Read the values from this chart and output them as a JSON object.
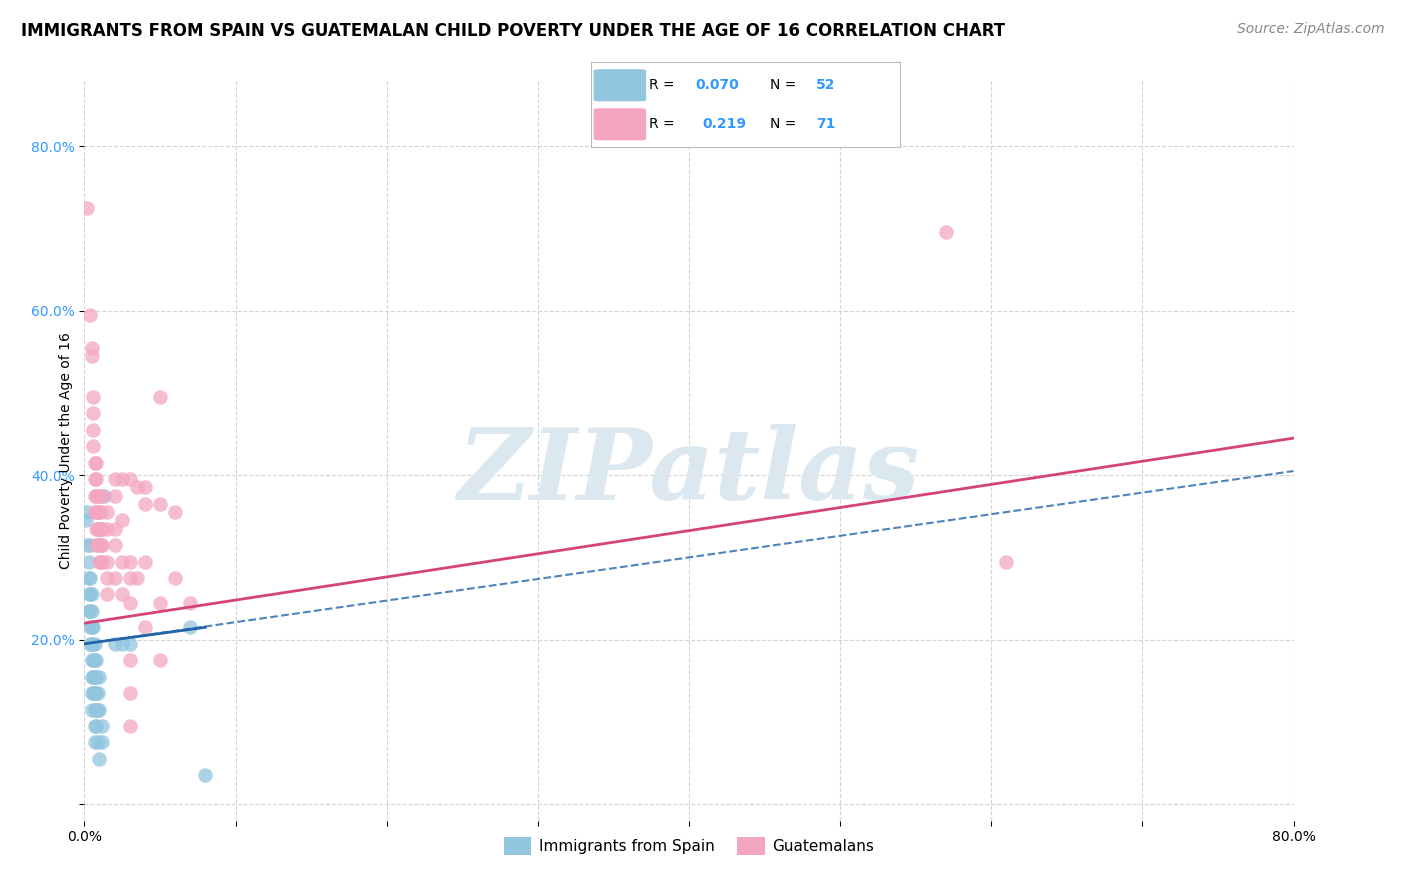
{
  "title": "IMMIGRANTS FROM SPAIN VS GUATEMALAN CHILD POVERTY UNDER THE AGE OF 16 CORRELATION CHART",
  "source": "Source: ZipAtlas.com",
  "ylabel": "Child Poverty Under the Age of 16",
  "xlim": [
    0,
    0.8
  ],
  "ylim": [
    -0.02,
    0.88
  ],
  "color_blue": "#92c5de",
  "color_pink": "#f4a6c0",
  "color_blue_line": "#2166ac",
  "color_pink_line": "#d6427a",
  "color_blue_tick": "#3399ff",
  "watermark_text": "ZIPatlas",
  "blue_points": [
    [
      0.001,
      0.345
    ],
    [
      0.002,
      0.355
    ],
    [
      0.002,
      0.315
    ],
    [
      0.003,
      0.295
    ],
    [
      0.003,
      0.275
    ],
    [
      0.003,
      0.255
    ],
    [
      0.003,
      0.235
    ],
    [
      0.004,
      0.315
    ],
    [
      0.004,
      0.275
    ],
    [
      0.004,
      0.255
    ],
    [
      0.004,
      0.235
    ],
    [
      0.004,
      0.215
    ],
    [
      0.004,
      0.195
    ],
    [
      0.005,
      0.255
    ],
    [
      0.005,
      0.235
    ],
    [
      0.005,
      0.215
    ],
    [
      0.005,
      0.195
    ],
    [
      0.005,
      0.175
    ],
    [
      0.005,
      0.155
    ],
    [
      0.005,
      0.135
    ],
    [
      0.005,
      0.115
    ],
    [
      0.006,
      0.215
    ],
    [
      0.006,
      0.195
    ],
    [
      0.006,
      0.175
    ],
    [
      0.006,
      0.155
    ],
    [
      0.006,
      0.135
    ],
    [
      0.007,
      0.195
    ],
    [
      0.007,
      0.175
    ],
    [
      0.007,
      0.155
    ],
    [
      0.007,
      0.135
    ],
    [
      0.007,
      0.115
    ],
    [
      0.007,
      0.095
    ],
    [
      0.007,
      0.075
    ],
    [
      0.008,
      0.175
    ],
    [
      0.008,
      0.155
    ],
    [
      0.008,
      0.135
    ],
    [
      0.008,
      0.115
    ],
    [
      0.008,
      0.095
    ],
    [
      0.009,
      0.135
    ],
    [
      0.009,
      0.115
    ],
    [
      0.009,
      0.075
    ],
    [
      0.01,
      0.155
    ],
    [
      0.01,
      0.115
    ],
    [
      0.01,
      0.055
    ],
    [
      0.012,
      0.095
    ],
    [
      0.012,
      0.075
    ],
    [
      0.013,
      0.375
    ],
    [
      0.02,
      0.195
    ],
    [
      0.025,
      0.195
    ],
    [
      0.03,
      0.195
    ],
    [
      0.07,
      0.215
    ],
    [
      0.08,
      0.035
    ]
  ],
  "pink_points": [
    [
      0.002,
      0.725
    ],
    [
      0.004,
      0.595
    ],
    [
      0.005,
      0.555
    ],
    [
      0.005,
      0.545
    ],
    [
      0.006,
      0.495
    ],
    [
      0.006,
      0.475
    ],
    [
      0.006,
      0.455
    ],
    [
      0.006,
      0.435
    ],
    [
      0.007,
      0.415
    ],
    [
      0.007,
      0.395
    ],
    [
      0.007,
      0.375
    ],
    [
      0.007,
      0.355
    ],
    [
      0.008,
      0.415
    ],
    [
      0.008,
      0.395
    ],
    [
      0.008,
      0.375
    ],
    [
      0.008,
      0.355
    ],
    [
      0.008,
      0.335
    ],
    [
      0.008,
      0.315
    ],
    [
      0.009,
      0.375
    ],
    [
      0.009,
      0.355
    ],
    [
      0.009,
      0.335
    ],
    [
      0.009,
      0.315
    ],
    [
      0.01,
      0.375
    ],
    [
      0.01,
      0.355
    ],
    [
      0.01,
      0.335
    ],
    [
      0.01,
      0.315
    ],
    [
      0.01,
      0.295
    ],
    [
      0.011,
      0.355
    ],
    [
      0.011,
      0.335
    ],
    [
      0.011,
      0.315
    ],
    [
      0.011,
      0.295
    ],
    [
      0.012,
      0.375
    ],
    [
      0.012,
      0.335
    ],
    [
      0.012,
      0.315
    ],
    [
      0.012,
      0.295
    ],
    [
      0.015,
      0.355
    ],
    [
      0.015,
      0.335
    ],
    [
      0.015,
      0.295
    ],
    [
      0.015,
      0.275
    ],
    [
      0.015,
      0.255
    ],
    [
      0.02,
      0.395
    ],
    [
      0.02,
      0.375
    ],
    [
      0.02,
      0.335
    ],
    [
      0.02,
      0.315
    ],
    [
      0.02,
      0.275
    ],
    [
      0.025,
      0.395
    ],
    [
      0.025,
      0.345
    ],
    [
      0.025,
      0.295
    ],
    [
      0.025,
      0.255
    ],
    [
      0.03,
      0.395
    ],
    [
      0.03,
      0.295
    ],
    [
      0.03,
      0.275
    ],
    [
      0.03,
      0.245
    ],
    [
      0.03,
      0.175
    ],
    [
      0.03,
      0.135
    ],
    [
      0.03,
      0.095
    ],
    [
      0.035,
      0.385
    ],
    [
      0.035,
      0.275
    ],
    [
      0.04,
      0.385
    ],
    [
      0.04,
      0.365
    ],
    [
      0.04,
      0.295
    ],
    [
      0.04,
      0.215
    ],
    [
      0.05,
      0.495
    ],
    [
      0.05,
      0.365
    ],
    [
      0.05,
      0.245
    ],
    [
      0.05,
      0.175
    ],
    [
      0.06,
      0.355
    ],
    [
      0.06,
      0.275
    ],
    [
      0.07,
      0.245
    ],
    [
      0.57,
      0.695
    ],
    [
      0.61,
      0.295
    ]
  ],
  "blue_solid_trend": [
    0.0,
    0.195,
    0.08,
    0.215
  ],
  "blue_dashed_trend": [
    0.0,
    0.195,
    0.8,
    0.405
  ],
  "pink_solid_trend": [
    0.0,
    0.22,
    0.8,
    0.445
  ],
  "grid_color": "#d0d0d0",
  "background_color": "#ffffff",
  "title_fontsize": 12,
  "source_fontsize": 10,
  "axis_label_fontsize": 10,
  "tick_fontsize": 10,
  "watermark_fontsize": 72,
  "watermark_color": "#dce8f0"
}
